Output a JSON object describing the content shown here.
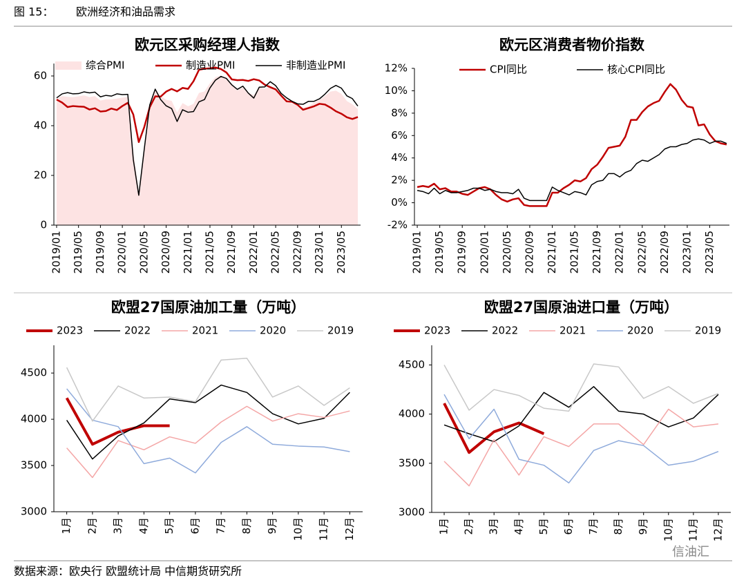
{
  "figure_label": "图 15：",
  "figure_title": "欧洲经济和油品需求",
  "source": "数据来源：欧央行 欧盟统计局 中信期货研究所",
  "watermark": "信油汇",
  "chart_data": [
    {
      "type": "line",
      "title": "欧元区采购经理人指数",
      "categories": [
        "2019/01",
        null,
        null,
        null,
        "2019/05",
        null,
        null,
        null,
        "2019/09",
        null,
        null,
        null,
        "2020/01",
        null,
        null,
        null,
        "2020/05",
        null,
        null,
        null,
        "2020/09",
        null,
        null,
        null,
        "2021/01",
        null,
        null,
        null,
        "2021/05",
        null,
        null,
        null,
        "2021/09",
        null,
        null,
        null,
        "2022/01",
        null,
        null,
        null,
        "2022/05",
        null,
        null,
        null,
        "2022/09",
        null,
        null,
        null,
        "2023/01",
        null,
        null,
        null,
        "2023/05",
        null,
        null,
        null
      ],
      "ylim": [
        0,
        65
      ],
      "yticks": [
        0,
        20,
        40,
        60
      ],
      "grid": false,
      "series": [
        {
          "name": "综合PMI",
          "color": "#fde3e3",
          "area": true,
          "values": [
            51,
            51.9,
            51.6,
            51.5,
            51.8,
            52.2,
            51.5,
            51.9,
            50.1,
            50.6,
            50.6,
            50.9,
            51.3,
            51.6,
            29.7,
            13.6,
            31.9,
            48.5,
            54.9,
            51.9,
            50.4,
            50.0,
            45.3,
            49.1,
            47.8,
            48.8,
            53.2,
            53.8,
            57.1,
            59.5,
            60.2,
            59.0,
            56.2,
            54.2,
            55.4,
            53.3,
            52.3,
            55.5,
            54.9,
            55.8,
            54.8,
            52.0,
            49.9,
            48.9,
            48.1,
            47.3,
            47.8,
            49.3,
            50.3,
            52.0,
            53.7,
            54.1,
            52.8,
            49.9,
            48.6,
            46.7
          ]
        },
        {
          "name": "制造业PMI",
          "color": "#c00000",
          "line_width": 2.5,
          "values": [
            50.5,
            49.3,
            47.5,
            47.9,
            47.7,
            47.6,
            46.5,
            47.0,
            45.7,
            45.9,
            46.9,
            46.3,
            47.9,
            49.2,
            44.5,
            33.4,
            39.4,
            47.4,
            51.8,
            51.7,
            53.7,
            54.8,
            53.8,
            55.2,
            54.8,
            57.9,
            62.5,
            62.9,
            63.1,
            63.4,
            62.8,
            61.4,
            58.6,
            58.3,
            58.4,
            58.0,
            58.7,
            58.2,
            56.5,
            55.5,
            54.6,
            52.1,
            49.8,
            49.6,
            48.4,
            46.4,
            47.1,
            47.8,
            48.8,
            48.5,
            47.3,
            45.8,
            44.8,
            43.4,
            42.7,
            43.5
          ]
        },
        {
          "name": "非制造业PMI",
          "color": "#000000",
          "line_width": 1.5,
          "values": [
            51.2,
            52.8,
            53.3,
            52.8,
            52.9,
            53.6,
            53.2,
            53.5,
            51.6,
            52.2,
            51.9,
            52.8,
            52.5,
            52.6,
            26.4,
            12.0,
            30.5,
            48.3,
            54.7,
            50.5,
            48.0,
            46.9,
            41.7,
            46.4,
            45.4,
            45.7,
            49.6,
            50.5,
            55.2,
            58.3,
            59.8,
            59.0,
            56.4,
            54.6,
            55.9,
            53.1,
            51.1,
            55.5,
            55.6,
            57.7,
            56.1,
            53.0,
            51.2,
            49.8,
            48.8,
            48.6,
            49.8,
            49.8,
            50.8,
            52.7,
            55.0,
            56.2,
            55.1,
            52.0,
            50.9,
            47.9
          ]
        }
      ]
    },
    {
      "type": "line",
      "title": "欧元区消费者物价指数",
      "categories": [
        "2019/01",
        null,
        null,
        null,
        "2019/05",
        null,
        null,
        null,
        "2019/09",
        null,
        null,
        null,
        "2020/01",
        null,
        null,
        null,
        "2020/05",
        null,
        null,
        null,
        "2020/09",
        null,
        null,
        null,
        "2021/01",
        null,
        null,
        null,
        "2021/05",
        null,
        null,
        null,
        "2021/09",
        null,
        null,
        null,
        "2022/01",
        null,
        null,
        null,
        "2022/05",
        null,
        null,
        null,
        "2022/09",
        null,
        null,
        null,
        "2023/01",
        null,
        null,
        null,
        "2023/05",
        null,
        null,
        null
      ],
      "ylim": [
        -2,
        12
      ],
      "yticks": [
        {
          "value": -2,
          "label": "-2%"
        },
        {
          "value": 0,
          "label": "0%"
        },
        {
          "value": 2,
          "label": "2%"
        },
        {
          "value": 4,
          "label": "4%"
        },
        {
          "value": 6,
          "label": "6%"
        },
        {
          "value": 8,
          "label": "8%"
        },
        {
          "value": 10,
          "label": "10%"
        },
        {
          "value": 12,
          "label": "12%"
        }
      ],
      "grid": false,
      "series": [
        {
          "name": "CPI同比",
          "color": "#c00000",
          "line_width": 2.5,
          "values": [
            1.4,
            1.5,
            1.4,
            1.7,
            1.2,
            1.3,
            1.0,
            1.0,
            0.8,
            0.7,
            1.0,
            1.3,
            1.4,
            1.2,
            0.7,
            0.3,
            0.1,
            0.3,
            0.4,
            -0.2,
            -0.3,
            -0.3,
            -0.3,
            -0.3,
            0.9,
            0.9,
            1.3,
            1.6,
            2.0,
            1.9,
            2.2,
            3.0,
            3.4,
            4.1,
            4.9,
            5.0,
            5.1,
            5.9,
            7.4,
            7.4,
            8.1,
            8.6,
            8.9,
            9.1,
            9.9,
            10.6,
            10.1,
            9.2,
            8.6,
            8.5,
            6.9,
            7.0,
            6.1,
            5.5,
            5.3,
            5.2
          ]
        },
        {
          "name": "核心CPI同比",
          "color": "#000000",
          "line_width": 1.5,
          "values": [
            1.1,
            1.0,
            0.8,
            1.3,
            0.8,
            1.1,
            0.9,
            0.9,
            1.0,
            1.1,
            1.3,
            1.3,
            1.1,
            1.2,
            1.0,
            0.9,
            0.9,
            0.8,
            1.2,
            0.4,
            0.2,
            0.2,
            0.2,
            0.2,
            1.4,
            1.1,
            0.9,
            0.7,
            1.0,
            0.9,
            0.7,
            1.6,
            1.9,
            2.0,
            2.6,
            2.6,
            2.3,
            2.7,
            2.9,
            3.5,
            3.8,
            3.7,
            4.0,
            4.3,
            4.8,
            5.0,
            5.0,
            5.2,
            5.3,
            5.6,
            5.7,
            5.6,
            5.3,
            5.5,
            5.5,
            5.3
          ]
        }
      ]
    },
    {
      "type": "line",
      "title": "欧盟27国原油加工量（万吨）",
      "categories": [
        "1月",
        "2月",
        "3月",
        "4月",
        "5月",
        "6月",
        "7月",
        "8月",
        "9月",
        "10月",
        "11月",
        "12月"
      ],
      "ylim": [
        3000,
        4800
      ],
      "yticks": [
        3000,
        3500,
        4000,
        4500
      ],
      "grid": false,
      "series": [
        {
          "name": "2023",
          "color": "#c00000",
          "line_width": 4,
          "values": [
            4230,
            3730,
            3860,
            3930,
            3930,
            null,
            null,
            null,
            null,
            null,
            null,
            null
          ]
        },
        {
          "name": "2022",
          "color": "#000000",
          "line_width": 1.5,
          "values": [
            3990,
            3570,
            3820,
            3960,
            4220,
            4180,
            4370,
            4290,
            4060,
            3950,
            4010,
            4290
          ]
        },
        {
          "name": "2021",
          "color": "#f4a6a6",
          "line_width": 1.5,
          "values": [
            3690,
            3370,
            3770,
            3670,
            3810,
            3740,
            3970,
            4140,
            3980,
            4060,
            4020,
            4090
          ]
        },
        {
          "name": "2020",
          "color": "#8eaadb",
          "line_width": 1.5,
          "values": [
            4330,
            3990,
            3920,
            3520,
            3580,
            3420,
            3750,
            3920,
            3730,
            3710,
            3700,
            3650
          ]
        },
        {
          "name": "2019",
          "color": "#c8c8c8",
          "line_width": 1.5,
          "values": [
            4560,
            3980,
            4360,
            4230,
            4240,
            4190,
            4640,
            4660,
            4240,
            4360,
            4150,
            4340
          ]
        }
      ]
    },
    {
      "type": "line",
      "title": "欧盟27国原油进口量（万吨）",
      "categories": [
        "1月",
        "2月",
        "3月",
        "4月",
        "5月",
        "6月",
        "7月",
        "8月",
        "9月",
        "10月",
        "11月",
        "12月"
      ],
      "ylim": [
        3000,
        4700
      ],
      "yticks": [
        3000,
        3500,
        4000,
        4500
      ],
      "grid": false,
      "series": [
        {
          "name": "2023",
          "color": "#c00000",
          "line_width": 4,
          "values": [
            4110,
            3610,
            3820,
            3910,
            3800,
            null,
            null,
            null,
            null,
            null,
            null,
            null
          ]
        },
        {
          "name": "2022",
          "color": "#000000",
          "line_width": 1.5,
          "values": [
            3890,
            3800,
            3720,
            3880,
            4220,
            4070,
            4280,
            4030,
            4000,
            3870,
            3960,
            4200
          ]
        },
        {
          "name": "2021",
          "color": "#f4a6a6",
          "line_width": 1.5,
          "values": [
            3520,
            3270,
            3740,
            3380,
            3770,
            3670,
            3900,
            3900,
            3690,
            4050,
            3870,
            3900
          ]
        },
        {
          "name": "2020",
          "color": "#8eaadb",
          "line_width": 1.5,
          "values": [
            4200,
            3750,
            4050,
            3540,
            3480,
            3300,
            3630,
            3730,
            3680,
            3480,
            3520,
            3620
          ]
        },
        {
          "name": "2019",
          "color": "#c8c8c8",
          "line_width": 1.5,
          "values": [
            4500,
            4040,
            4250,
            4190,
            4060,
            4030,
            4510,
            4480,
            4160,
            4280,
            4110,
            4210
          ]
        }
      ]
    }
  ]
}
